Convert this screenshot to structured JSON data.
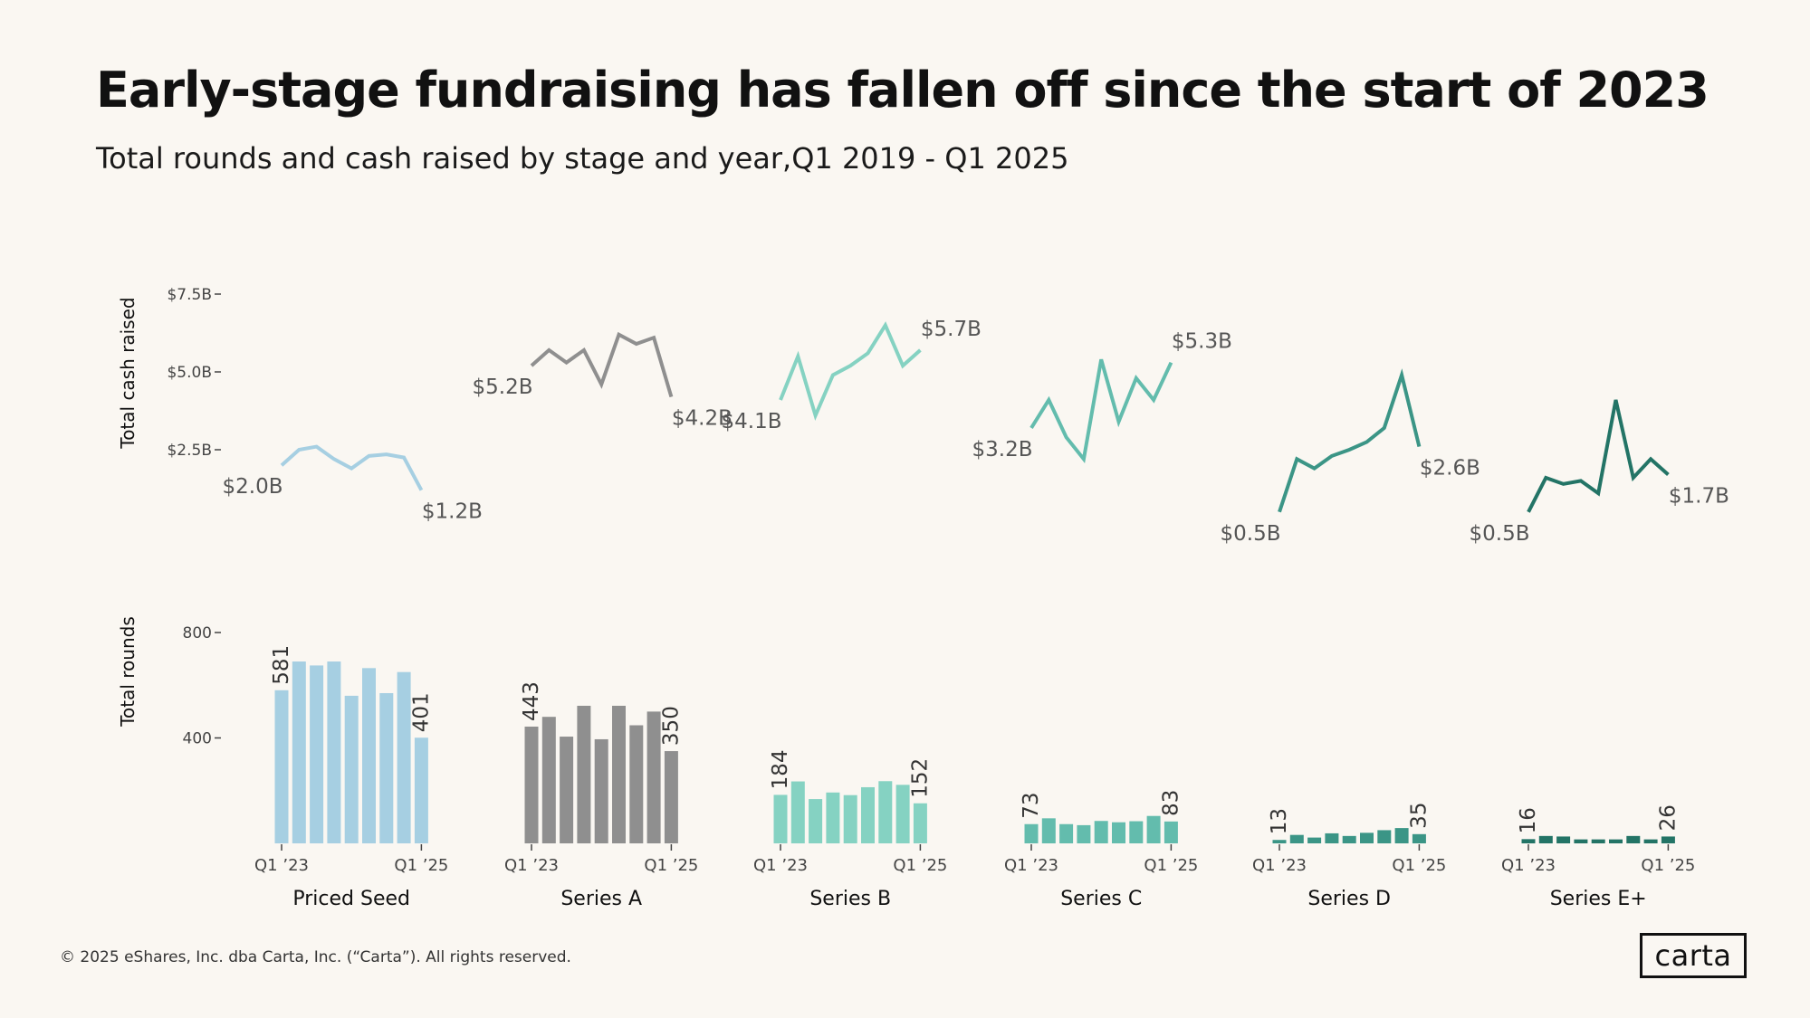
{
  "title": "Early-stage fundraising has fallen off since the start of 2023",
  "subtitle": "Total rounds and cash raised by stage and year,Q1 2019 - Q1 2025",
  "footer": "© 2025 eShares, Inc. dba Carta, Inc. (“Carta”). All rights reserved.",
  "logo_text": "carta",
  "colors": {
    "background": "#faf7f2",
    "axis_text": "#444444",
    "Priced Seed": "#a6cfe2",
    "Series A": "#8f8f8f",
    "Series B": "#85d2c2",
    "Series C": "#63bcad",
    "Series D": "#3b9586",
    "Series E+": "#237466"
  },
  "chart_data": [
    {
      "type": "line",
      "title": "",
      "ylabel": "Total cash raised",
      "ylim": [
        0,
        7.5
      ],
      "yticks": [
        2.5,
        5.0,
        7.5
      ],
      "ytick_labels": [
        "$2.5B",
        "$5.0B",
        "$7.5B"
      ],
      "unit": "$B",
      "series": [
        {
          "name": "Priced Seed",
          "values": [
            2.0,
            2.5,
            2.6,
            2.2,
            1.9,
            2.3,
            2.35,
            2.25,
            1.2
          ],
          "start_label": "$2.0B",
          "end_label": "$1.2B"
        },
        {
          "name": "Series A",
          "values": [
            5.2,
            5.7,
            5.3,
            5.7,
            4.6,
            6.2,
            5.9,
            6.1,
            4.2
          ],
          "start_label": "$5.2B",
          "end_label": "$4.2B"
        },
        {
          "name": "Series B",
          "values": [
            4.1,
            5.5,
            3.6,
            4.9,
            5.2,
            5.6,
            6.5,
            5.2,
            5.7
          ],
          "start_label": "$4.1B",
          "end_label": "$5.7B"
        },
        {
          "name": "Series C",
          "values": [
            3.2,
            4.1,
            2.9,
            2.2,
            5.4,
            3.4,
            4.8,
            4.1,
            5.3
          ],
          "start_label": "$3.2B",
          "end_label": "$5.3B"
        },
        {
          "name": "Series D",
          "values": [
            0.5,
            2.2,
            1.9,
            2.3,
            2.5,
            2.75,
            3.2,
            4.9,
            2.6
          ],
          "start_label": "$0.5B",
          "end_label": "$2.6B"
        },
        {
          "name": "Series E+",
          "values": [
            0.5,
            1.6,
            1.4,
            1.5,
            1.1,
            4.1,
            1.6,
            2.2,
            1.7
          ],
          "start_label": "$0.5B",
          "end_label": "$1.7B"
        }
      ]
    },
    {
      "type": "bar",
      "title": "",
      "ylabel": "Total rounds",
      "ylim": [
        0,
        800
      ],
      "yticks": [
        400,
        800
      ],
      "ytick_labels": [
        "400",
        "800"
      ],
      "categories": [
        "Q1 ’23",
        "",
        "",
        "",
        "",
        "",
        "",
        "",
        "Q1 ’25"
      ],
      "series": [
        {
          "name": "Priced Seed",
          "values": [
            581,
            690,
            675,
            690,
            560,
            665,
            570,
            650,
            401
          ],
          "start_label": "581",
          "end_label": "401"
        },
        {
          "name": "Series A",
          "values": [
            443,
            480,
            405,
            522,
            395,
            522,
            448,
            500,
            350
          ],
          "start_label": "443",
          "end_label": "350"
        },
        {
          "name": "Series B",
          "values": [
            184,
            235,
            168,
            193,
            183,
            213,
            236,
            222,
            152
          ],
          "start_label": "184",
          "end_label": "152"
        },
        {
          "name": "Series C",
          "values": [
            73,
            95,
            73,
            69,
            85,
            80,
            84,
            104,
            83
          ],
          "start_label": "73",
          "end_label": "83"
        },
        {
          "name": "Series D",
          "values": [
            13,
            32,
            22,
            38,
            28,
            40,
            50,
            58,
            35
          ],
          "start_label": "13",
          "end_label": "35"
        },
        {
          "name": "Series E+",
          "values": [
            16,
            28,
            26,
            15,
            15,
            15,
            28,
            15,
            26
          ],
          "start_label": "16",
          "end_label": "26"
        }
      ]
    }
  ]
}
